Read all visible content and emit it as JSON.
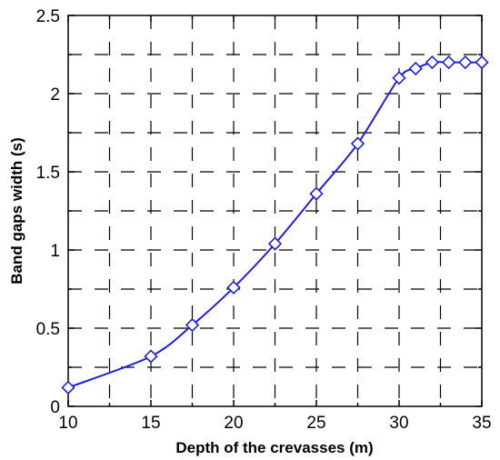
{
  "chart_data": {
    "type": "line",
    "xlabel": "Depth of the crevasses (m)",
    "ylabel": "Band gaps width (s)",
    "xlim": [
      10,
      35
    ],
    "ylim": [
      0,
      2.5
    ],
    "x_ticks": [
      "10",
      "15",
      "20",
      "25",
      "30",
      "35"
    ],
    "y_ticks": [
      "0",
      "0.5",
      "1",
      "1.5",
      "2",
      "2.5"
    ],
    "grid": true,
    "legend": "none",
    "marker": "diamond",
    "color": "#1f1fe0",
    "series": [
      {
        "x": [
          10,
          15,
          17.5,
          20,
          22.5,
          25,
          27.5,
          30,
          31,
          32,
          33,
          34,
          35
        ],
        "y": [
          0.12,
          0.32,
          0.52,
          0.76,
          1.04,
          1.36,
          1.68,
          2.1,
          2.16,
          2.2,
          2.2,
          2.2,
          2.2
        ]
      }
    ]
  }
}
